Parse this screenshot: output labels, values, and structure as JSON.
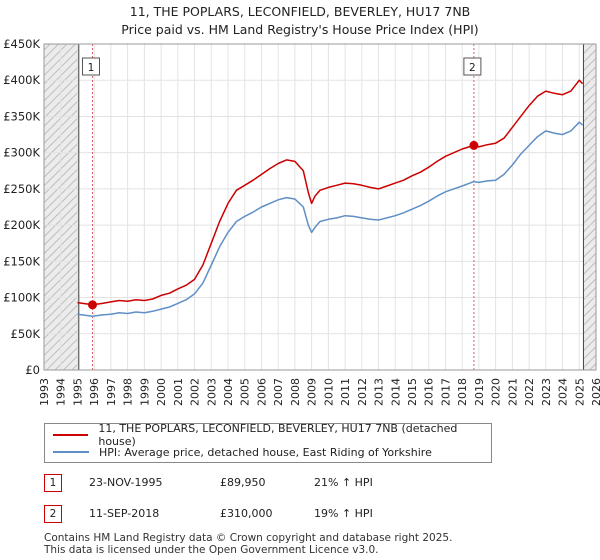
{
  "chart_data": {
    "type": "line",
    "title": "11, THE POPLARS, LECONFIELD, BEVERLEY, HU17 7NB",
    "subtitle": "Price paid vs. HM Land Registry's House Price Index (HPI)",
    "xlim": [
      1993,
      2026
    ],
    "ylim": [
      0,
      450000
    ],
    "x_ticks": [
      1993,
      1994,
      1995,
      1996,
      1997,
      1998,
      1999,
      2000,
      2001,
      2002,
      2003,
      2004,
      2005,
      2006,
      2007,
      2008,
      2009,
      2010,
      2011,
      2012,
      2013,
      2014,
      2015,
      2016,
      2017,
      2018,
      2019,
      2020,
      2021,
      2022,
      2023,
      2024,
      2025,
      2026
    ],
    "x_tick_labels": [
      "1993",
      "1994",
      "1995",
      "1996",
      "1997",
      "1998",
      "1999",
      "2000",
      "2001",
      "2002",
      "2003",
      "2004",
      "2005",
      "2006",
      "2007",
      "2008",
      "2009",
      "2010",
      "2011",
      "2012",
      "2013",
      "2014",
      "2015",
      "2016",
      "2017",
      "2018",
      "2019",
      "2020",
      "2021",
      "2022",
      "2023",
      "2024",
      "2025",
      "2026"
    ],
    "y_ticks": [
      0,
      50000,
      100000,
      150000,
      200000,
      250000,
      300000,
      350000,
      400000,
      450000
    ],
    "y_tick_labels": [
      "£0",
      "£50K",
      "£100K",
      "£150K",
      "£200K",
      "£250K",
      "£300K",
      "£350K",
      "£400K",
      "£450K"
    ],
    "hatched_ranges": [
      [
        1993,
        1995.08
      ],
      [
        2025.25,
        2026
      ]
    ],
    "series": [
      {
        "name": "11, THE POPLARS, LECONFIELD, BEVERLEY, HU17 7NB (detached house)",
        "color": "#cc0000",
        "x": [
          1995.0,
          1995.9,
          1996.5,
          1997.0,
          1997.5,
          1998.0,
          1998.5,
          1999.0,
          1999.5,
          2000.0,
          2000.5,
          2001.0,
          2001.5,
          2002.0,
          2002.5,
          2003.0,
          2003.5,
          2004.0,
          2004.5,
          2005.0,
          2005.5,
          2006.0,
          2006.5,
          2007.0,
          2007.5,
          2008.0,
          2008.5,
          2008.8,
          2009.0,
          2009.2,
          2009.5,
          2010.0,
          2010.5,
          2011.0,
          2011.5,
          2012.0,
          2012.5,
          2013.0,
          2013.5,
          2014.0,
          2014.5,
          2015.0,
          2015.5,
          2016.0,
          2016.5,
          2017.0,
          2017.5,
          2018.0,
          2018.7,
          2019.0,
          2019.5,
          2020.0,
          2020.5,
          2021.0,
          2021.5,
          2022.0,
          2022.5,
          2023.0,
          2023.5,
          2024.0,
          2024.5,
          2025.0,
          2025.2
        ],
        "values": [
          93000,
          89950,
          92000,
          94000,
          96000,
          95000,
          97000,
          96000,
          98000,
          103000,
          106000,
          112000,
          117000,
          125000,
          145000,
          175000,
          205000,
          230000,
          248000,
          255000,
          262000,
          270000,
          278000,
          285000,
          290000,
          288000,
          275000,
          245000,
          230000,
          240000,
          248000,
          252000,
          255000,
          258000,
          257000,
          255000,
          252000,
          250000,
          254000,
          258000,
          262000,
          268000,
          273000,
          280000,
          288000,
          295000,
          300000,
          305000,
          310000,
          308000,
          311000,
          313000,
          320000,
          335000,
          350000,
          365000,
          378000,
          385000,
          382000,
          380000,
          385000,
          400000,
          395000
        ]
      },
      {
        "name": "HPI: Average price, detached house, East Riding of Yorkshire",
        "color": "#5f8fc7",
        "x": [
          1995.0,
          1995.9,
          1996.5,
          1997.0,
          1997.5,
          1998.0,
          1998.5,
          1999.0,
          1999.5,
          2000.0,
          2000.5,
          2001.0,
          2001.5,
          2002.0,
          2002.5,
          2003.0,
          2003.5,
          2004.0,
          2004.5,
          2005.0,
          2005.5,
          2006.0,
          2006.5,
          2007.0,
          2007.5,
          2008.0,
          2008.5,
          2008.8,
          2009.0,
          2009.2,
          2009.5,
          2010.0,
          2010.5,
          2011.0,
          2011.5,
          2012.0,
          2012.5,
          2013.0,
          2013.5,
          2014.0,
          2014.5,
          2015.0,
          2015.5,
          2016.0,
          2016.5,
          2017.0,
          2017.5,
          2018.0,
          2018.7,
          2019.0,
          2019.5,
          2020.0,
          2020.5,
          2021.0,
          2021.5,
          2022.0,
          2022.5,
          2023.0,
          2023.5,
          2024.0,
          2024.5,
          2025.0,
          2025.2
        ],
        "values": [
          77000,
          74300,
          76000,
          77000,
          79000,
          78000,
          80000,
          79000,
          81000,
          84000,
          87000,
          92000,
          97000,
          105000,
          120000,
          145000,
          170000,
          190000,
          205000,
          212000,
          218000,
          225000,
          230000,
          235000,
          238000,
          236000,
          225000,
          200000,
          190000,
          197000,
          205000,
          208000,
          210000,
          213000,
          212000,
          210000,
          208000,
          207000,
          210000,
          213000,
          217000,
          222000,
          227000,
          233000,
          240000,
          246000,
          250000,
          254000,
          260000,
          259000,
          261000,
          262000,
          270000,
          283000,
          298000,
          310000,
          322000,
          330000,
          327000,
          325000,
          330000,
          342000,
          338000
        ]
      }
    ],
    "sales": [
      {
        "label": "1",
        "x": 1995.9,
        "price": 89950
      },
      {
        "label": "2",
        "x": 2018.7,
        "price": 310000
      }
    ]
  },
  "legend": [
    {
      "label": "11, THE POPLARS, LECONFIELD, BEVERLEY, HU17 7NB (detached house)",
      "color": "#cc0000"
    },
    {
      "label": "HPI: Average price, detached house, East Riding of Yorkshire",
      "color": "#5f8fc7"
    }
  ],
  "transactions": [
    {
      "num": "1",
      "date": "23-NOV-1995",
      "price": "£89,950",
      "hpi": "21% ↑ HPI"
    },
    {
      "num": "2",
      "date": "11-SEP-2018",
      "price": "£310,000",
      "hpi": "19% ↑ HPI"
    }
  ],
  "footer": {
    "line1": "Contains HM Land Registry data © Crown copyright and database right 2025.",
    "line2": "This data is licensed under the Open Government Licence v3.0."
  }
}
